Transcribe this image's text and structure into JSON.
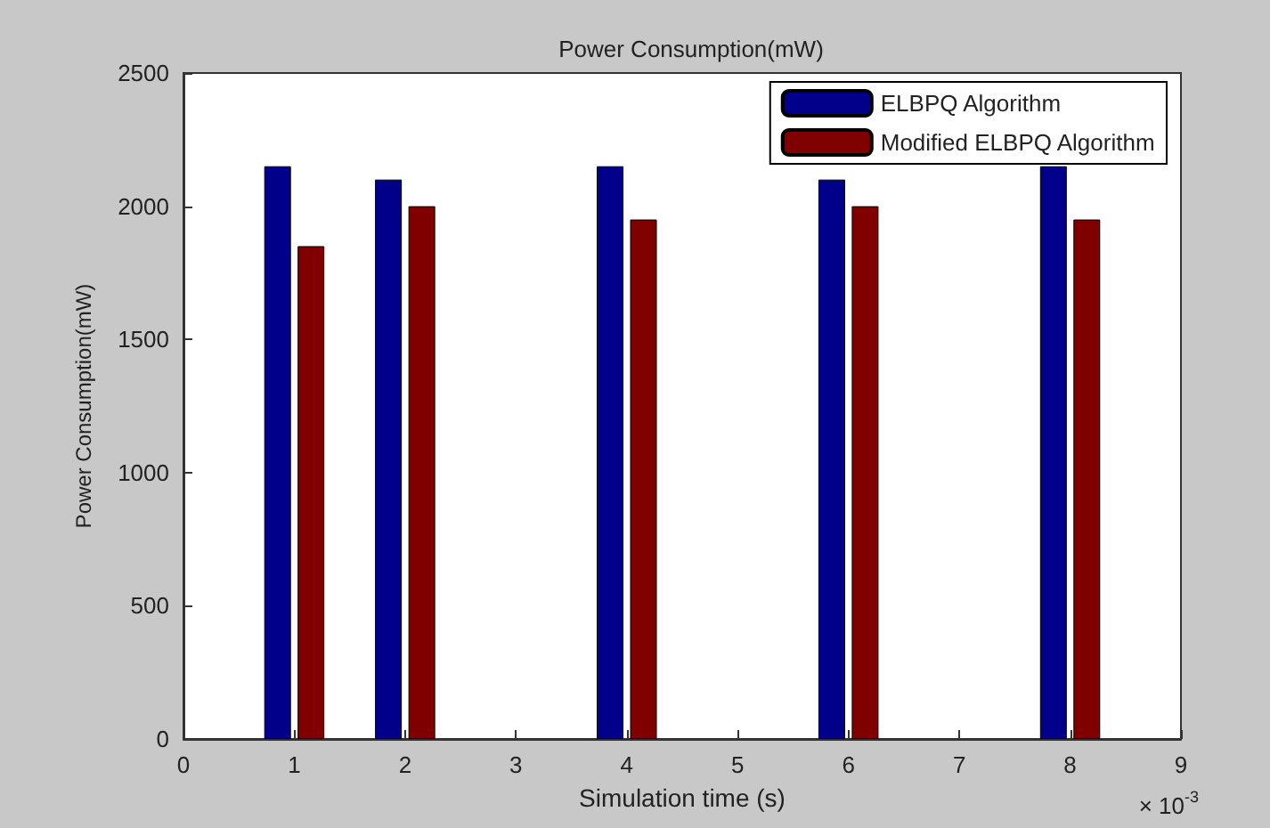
{
  "chart_data": {
    "type": "bar",
    "title": "Power Consumption(mW)",
    "xlabel": "Simulation time (s)",
    "ylabel": "Power Consumption(mW)",
    "x": [
      1,
      2,
      4,
      6,
      8
    ],
    "series": [
      {
        "name": "ELBPQ Algorithm",
        "color": "#00008b",
        "values": [
          2150,
          2100,
          2150,
          2100,
          2150
        ]
      },
      {
        "name": "Modified ELBPQ Algorithm",
        "color": "#800000",
        "values": [
          1850,
          2000,
          1950,
          2000,
          1950
        ]
      }
    ],
    "xlim": [
      0,
      9
    ],
    "xticks": [
      0,
      1,
      2,
      3,
      4,
      5,
      6,
      7,
      8,
      9
    ],
    "ylim": [
      0,
      2500
    ],
    "yticks": [
      0,
      500,
      1000,
      1500,
      2000,
      2500
    ],
    "annotations": [
      "× 10$^{-3}$"
    ],
    "legend": "top right",
    "grid": false
  }
}
